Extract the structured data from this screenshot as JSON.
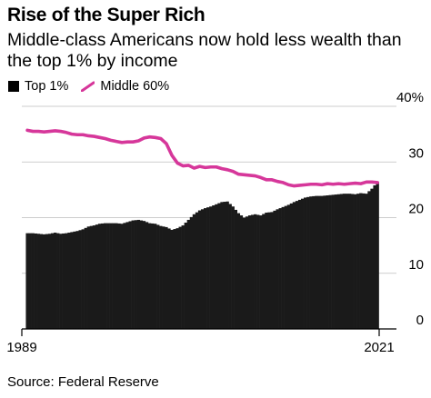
{
  "title": "Rise of the Super Rich",
  "subtitle": "Middle-class Americans now hold less wealth than the top 1% by income",
  "source": "Source: Federal Reserve",
  "colors": {
    "bar": "#1a1a1a",
    "line": "#d6379a",
    "axis": "#000000",
    "grid": "#bdbdbd"
  },
  "chart_data": {
    "type": "bar",
    "legend_position": "top-left",
    "grid": true,
    "y_axis_side": "right",
    "ylim": [
      0,
      40
    ],
    "y_ticks": [
      {
        "value": 0,
        "label": "0"
      },
      {
        "value": 10,
        "label": "10"
      },
      {
        "value": 20,
        "label": "20"
      },
      {
        "value": 30,
        "label": "30"
      },
      {
        "value": 40,
        "label": "40%"
      }
    ],
    "x_tick_labels": [
      {
        "date": "1989",
        "label": "1989"
      },
      {
        "date": "2021",
        "label": "2021"
      }
    ],
    "series": [
      {
        "name": "Top 1%",
        "kind": "bar",
        "points": [
          [
            "1989Q3",
            17.2
          ],
          [
            "1990Q1",
            17.2
          ],
          [
            "1990Q3",
            17.1
          ],
          [
            "1991Q1",
            17.0
          ],
          [
            "1991Q3",
            17.1
          ],
          [
            "1992Q1",
            17.3
          ],
          [
            "1992Q3",
            17.1
          ],
          [
            "1993Q1",
            17.2
          ],
          [
            "1993Q3",
            17.4
          ],
          [
            "1994Q1",
            17.6
          ],
          [
            "1994Q3",
            17.9
          ],
          [
            "1995Q1",
            18.4
          ],
          [
            "1995Q3",
            18.6
          ],
          [
            "1996Q1",
            18.9
          ],
          [
            "1996Q3",
            19.0
          ],
          [
            "1997Q1",
            19.0
          ],
          [
            "1997Q3",
            19.0
          ],
          [
            "1998Q1",
            18.9
          ],
          [
            "1998Q3",
            19.2
          ],
          [
            "1999Q1",
            19.5
          ],
          [
            "1999Q3",
            19.6
          ],
          [
            "2000Q1",
            19.4
          ],
          [
            "2000Q3",
            19.0
          ],
          [
            "2001Q1",
            18.9
          ],
          [
            "2001Q3",
            18.5
          ],
          [
            "2002Q1",
            18.3
          ],
          [
            "2002Q3",
            17.8
          ],
          [
            "2003Q1",
            18.1
          ],
          [
            "2003Q3",
            18.6
          ],
          [
            "2004Q1",
            19.6
          ],
          [
            "2004Q3",
            20.6
          ],
          [
            "2005Q1",
            21.3
          ],
          [
            "2005Q3",
            21.7
          ],
          [
            "2006Q1",
            22.0
          ],
          [
            "2006Q3",
            22.4
          ],
          [
            "2007Q1",
            22.8
          ],
          [
            "2007Q3",
            22.9
          ],
          [
            "2008Q1",
            22.0
          ],
          [
            "2008Q3",
            20.8
          ],
          [
            "2009Q1",
            20.0
          ],
          [
            "2009Q3",
            20.4
          ],
          [
            "2010Q1",
            20.6
          ],
          [
            "2010Q3",
            20.4
          ],
          [
            "2011Q1",
            20.9
          ],
          [
            "2011Q3",
            21.0
          ],
          [
            "2012Q1",
            21.5
          ],
          [
            "2012Q3",
            21.9
          ],
          [
            "2013Q1",
            22.3
          ],
          [
            "2013Q3",
            22.8
          ],
          [
            "2014Q1",
            23.2
          ],
          [
            "2014Q3",
            23.6
          ],
          [
            "2015Q1",
            23.8
          ],
          [
            "2015Q3",
            23.9
          ],
          [
            "2016Q1",
            23.9
          ],
          [
            "2016Q3",
            24.0
          ],
          [
            "2017Q1",
            24.1
          ],
          [
            "2017Q3",
            24.2
          ],
          [
            "2018Q1",
            24.3
          ],
          [
            "2018Q3",
            24.3
          ],
          [
            "2019Q1",
            24.2
          ],
          [
            "2019Q3",
            24.4
          ],
          [
            "2020Q1",
            24.3
          ],
          [
            "2020Q3",
            25.2
          ],
          [
            "2021Q1",
            26.4
          ]
        ]
      },
      {
        "name": "Middle 60%",
        "kind": "line",
        "points": [
          [
            "1989Q3",
            35.7
          ],
          [
            "1990Q1",
            35.5
          ],
          [
            "1990Q3",
            35.5
          ],
          [
            "1991Q1",
            35.4
          ],
          [
            "1991Q3",
            35.5
          ],
          [
            "1992Q1",
            35.6
          ],
          [
            "1992Q3",
            35.5
          ],
          [
            "1993Q1",
            35.3
          ],
          [
            "1993Q3",
            35.0
          ],
          [
            "1994Q1",
            34.9
          ],
          [
            "1994Q3",
            34.9
          ],
          [
            "1995Q1",
            34.7
          ],
          [
            "1995Q3",
            34.6
          ],
          [
            "1996Q1",
            34.4
          ],
          [
            "1996Q3",
            34.2
          ],
          [
            "1997Q1",
            33.9
          ],
          [
            "1997Q3",
            33.7
          ],
          [
            "1998Q1",
            33.5
          ],
          [
            "1998Q3",
            33.6
          ],
          [
            "1999Q1",
            33.6
          ],
          [
            "1999Q3",
            33.8
          ],
          [
            "2000Q1",
            34.3
          ],
          [
            "2000Q3",
            34.5
          ],
          [
            "2001Q1",
            34.4
          ],
          [
            "2001Q3",
            34.2
          ],
          [
            "2002Q1",
            33.3
          ],
          [
            "2002Q3",
            31.2
          ],
          [
            "2003Q1",
            29.8
          ],
          [
            "2003Q3",
            29.3
          ],
          [
            "2004Q1",
            29.4
          ],
          [
            "2004Q3",
            28.9
          ],
          [
            "2005Q1",
            29.2
          ],
          [
            "2005Q3",
            29.0
          ],
          [
            "2006Q1",
            29.1
          ],
          [
            "2006Q3",
            29.1
          ],
          [
            "2007Q1",
            28.8
          ],
          [
            "2007Q3",
            28.6
          ],
          [
            "2008Q1",
            28.3
          ],
          [
            "2008Q3",
            27.8
          ],
          [
            "2009Q1",
            27.7
          ],
          [
            "2009Q3",
            27.6
          ],
          [
            "2010Q1",
            27.5
          ],
          [
            "2010Q3",
            27.2
          ],
          [
            "2011Q1",
            26.8
          ],
          [
            "2011Q3",
            26.8
          ],
          [
            "2012Q1",
            26.5
          ],
          [
            "2012Q3",
            26.3
          ],
          [
            "2013Q1",
            25.9
          ],
          [
            "2013Q3",
            25.7
          ],
          [
            "2014Q1",
            25.8
          ],
          [
            "2014Q3",
            25.9
          ],
          [
            "2015Q1",
            26.0
          ],
          [
            "2015Q3",
            26.0
          ],
          [
            "2016Q1",
            25.9
          ],
          [
            "2016Q3",
            26.1
          ],
          [
            "2017Q1",
            26.0
          ],
          [
            "2017Q3",
            26.1
          ],
          [
            "2018Q1",
            26.0
          ],
          [
            "2018Q3",
            26.1
          ],
          [
            "2019Q1",
            26.2
          ],
          [
            "2019Q3",
            26.1
          ],
          [
            "2020Q1",
            26.4
          ],
          [
            "2020Q3",
            26.4
          ],
          [
            "2021Q1",
            26.3
          ]
        ]
      }
    ]
  }
}
